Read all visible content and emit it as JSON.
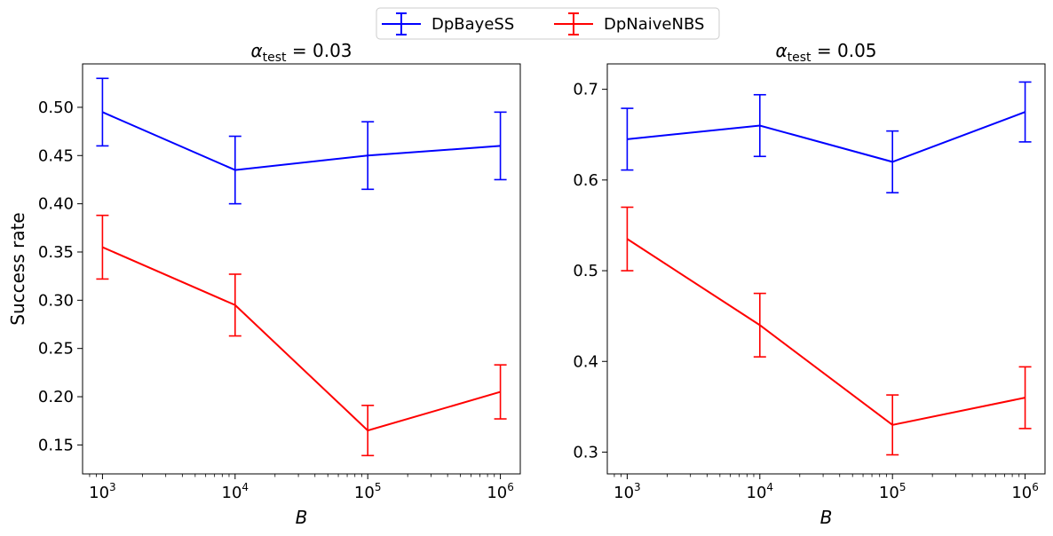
{
  "legend": {
    "placement": "top-center",
    "entries": [
      {
        "name": "DpBayeSS",
        "color": "#0000ff"
      },
      {
        "name": "DpNaiveNBS",
        "color": "#ff0000"
      }
    ]
  },
  "chart_data": [
    {
      "type": "line",
      "title_symbol": "α",
      "title_subscript": "test",
      "title_value": " = 0.03",
      "xlabel": "B",
      "ylabel": "Success rate",
      "xscale": "log",
      "x": [
        1000,
        10000,
        100000,
        1000000
      ],
      "xticks": [
        {
          "base": "10",
          "exp": "3"
        },
        {
          "base": "10",
          "exp": "4"
        },
        {
          "base": "10",
          "exp": "5"
        },
        {
          "base": "10",
          "exp": "6"
        }
      ],
      "ylim": [
        0.12,
        0.545
      ],
      "yticks": [
        "0.15",
        "0.20",
        "0.25",
        "0.30",
        "0.35",
        "0.40",
        "0.45",
        "0.50"
      ],
      "grid": false,
      "series": [
        {
          "name": "DpBayeSS",
          "color": "#0000ff",
          "values": [
            0.495,
            0.435,
            0.45,
            0.46
          ],
          "errors": [
            0.035,
            0.035,
            0.035,
            0.035
          ]
        },
        {
          "name": "DpNaiveNBS",
          "color": "#ff0000",
          "values": [
            0.355,
            0.295,
            0.165,
            0.205
          ],
          "errors": [
            0.033,
            0.032,
            0.026,
            0.028
          ]
        }
      ]
    },
    {
      "type": "line",
      "title_symbol": "α",
      "title_subscript": "test",
      "title_value": " = 0.05",
      "xlabel": "B",
      "ylabel": "",
      "xscale": "log",
      "x": [
        1000,
        10000,
        100000,
        1000000
      ],
      "xticks": [
        {
          "base": "10",
          "exp": "3"
        },
        {
          "base": "10",
          "exp": "4"
        },
        {
          "base": "10",
          "exp": "5"
        },
        {
          "base": "10",
          "exp": "6"
        }
      ],
      "ylim": [
        0.276,
        0.728
      ],
      "yticks": [
        "0.3",
        "0.4",
        "0.5",
        "0.6",
        "0.7"
      ],
      "grid": false,
      "series": [
        {
          "name": "DpBayeSS",
          "color": "#0000ff",
          "values": [
            0.645,
            0.66,
            0.62,
            0.675
          ],
          "errors": [
            0.034,
            0.034,
            0.034,
            0.033
          ]
        },
        {
          "name": "DpNaiveNBS",
          "color": "#ff0000",
          "values": [
            0.535,
            0.44,
            0.33,
            0.36
          ],
          "errors": [
            0.035,
            0.035,
            0.033,
            0.034
          ]
        }
      ]
    }
  ]
}
